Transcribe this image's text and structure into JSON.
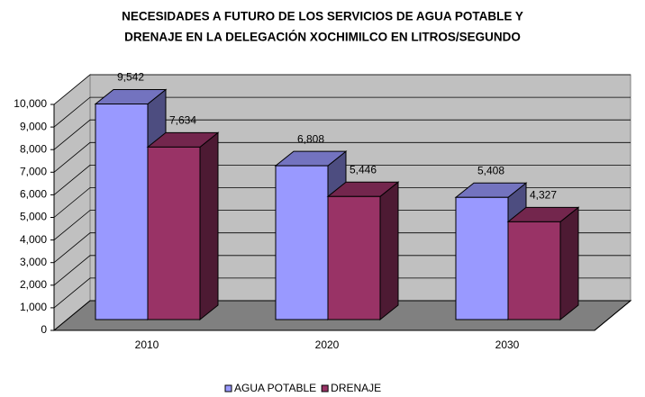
{
  "chart_data": {
    "type": "bar3d",
    "title": [
      "NECESIDADES A FUTURO DE LOS SERVICIOS DE AGUA POTABLE Y",
      "DRENAJE EN LA DELEGACIÓN XOCHIMILCO EN LITROS/SEGUNDO"
    ],
    "categories": [
      "2010",
      "2020",
      "2030"
    ],
    "series": [
      {
        "name": "AGUA POTABLE",
        "color": "#9999ff",
        "values": [
          9542,
          6808,
          5408
        ],
        "value_labels": [
          "9,542",
          "6,808",
          "5,408"
        ]
      },
      {
        "name": "DRENAJE",
        "color": "#993366",
        "values": [
          7634,
          5446,
          4327
        ],
        "value_labels": [
          "7,634",
          "5,446",
          "4,327"
        ]
      }
    ],
    "ylim": [
      0,
      10000
    ],
    "yticks": [
      0,
      {
        "value": 1000,
        "label": "1,000"
      },
      {
        "value": 2000,
        "label": "2,000"
      },
      {
        "value": 3000,
        "label": "3,000"
      },
      {
        "value": 4000,
        "label": "4,000"
      },
      {
        "value": 5000,
        "label": "5,000"
      },
      {
        "value": 6000,
        "label": "6,000"
      },
      {
        "value": 7000,
        "label": "7,000"
      },
      {
        "value": 8000,
        "label": "8,000"
      },
      {
        "value": 9000,
        "label": "9,000"
      },
      {
        "value": 10000,
        "label": "10,000"
      }
    ],
    "grid": true,
    "legend": "bottom"
  }
}
